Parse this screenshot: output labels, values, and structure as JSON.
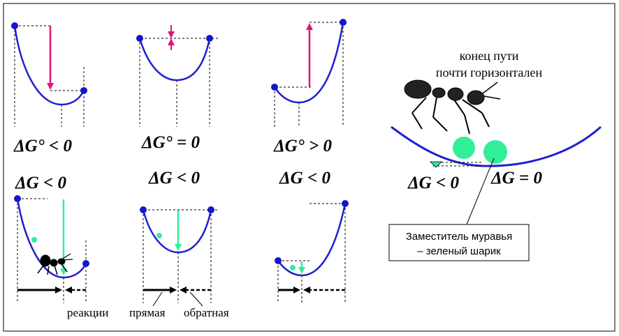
{
  "panels": {
    "p1_label": "ΔG° < 0",
    "p2_label": "ΔG° = 0",
    "p3_label": "ΔG° > 0",
    "p4_label": "ΔG < 0",
    "p5_label": "ΔG < 0",
    "p6_label": "ΔG < 0"
  },
  "right_panel": {
    "caption_line1": "конец  пути",
    "caption_line2": "почти  горизонтален",
    "label_left": "ΔG < 0",
    "label_right": "ΔG = 0",
    "callout_line1": "Заместитель  муравья",
    "callout_line2": "– зеленый  шарик"
  },
  "bottom_labels": {
    "reactions": "реакции",
    "forward": "прямая",
    "reverse": "обратная"
  },
  "colors": {
    "curve": "#1f1fd0",
    "point": "#1515cc",
    "magenta_arrow": "#e0137e",
    "green": "#33ee99",
    "frame": "#000000"
  }
}
